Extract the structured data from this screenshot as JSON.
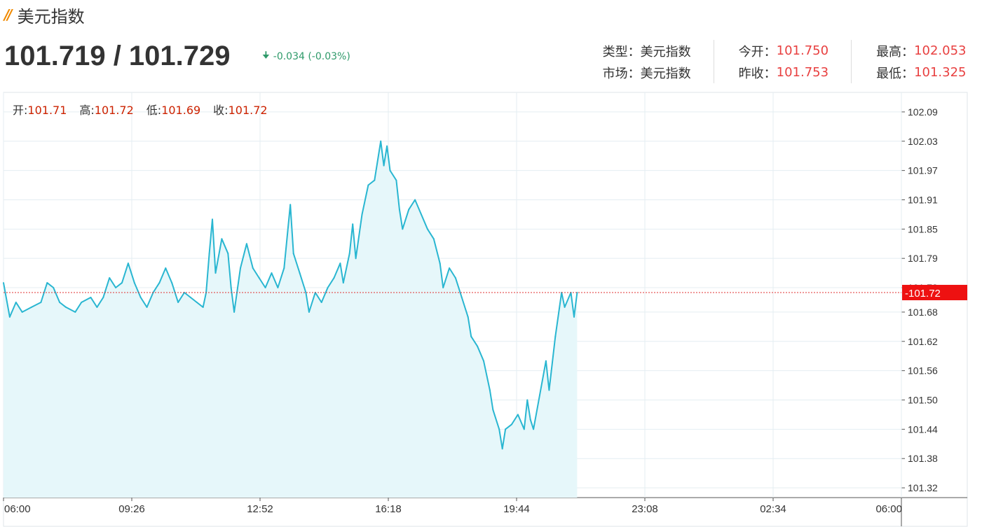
{
  "header": {
    "title": "美元指数",
    "price": "101.719 / 101.729",
    "change": "-0.034 (-0.03%)"
  },
  "info": {
    "type_label": "类型：",
    "type_value": "美元指数",
    "market_label": "市场：",
    "market_value": "美元指数",
    "open_label": "今开：",
    "open_value": "101.750",
    "prev_close_label": "昨收：",
    "prev_close_value": "101.753",
    "high_label": "最高：",
    "high_value": "102.053",
    "low_label": "最低：",
    "low_value": "101.325"
  },
  "ohlc": {
    "open_label": "开:",
    "open_value": "101.71",
    "high_label": "高:",
    "high_value": "101.72",
    "low_label": "低:",
    "low_value": "101.69",
    "close_label": "收:",
    "close_value": "101.72"
  },
  "colors": {
    "line": "#29b6d1",
    "area": "#e6f7fa",
    "current_line": "#e03030",
    "current_badge": "#ee1111",
    "grid": "#e4eef2"
  },
  "chart_data": {
    "type": "area",
    "xlabel": "",
    "ylabel": "",
    "x_ticks": [
      "06:00",
      "09:26",
      "12:52",
      "16:18",
      "19:44",
      "23:08",
      "02:34",
      "06:00"
    ],
    "y_ticks": [
      "102.09",
      "102.03",
      "101.97",
      "101.91",
      "101.85",
      "101.79",
      "101.73",
      "101.68",
      "101.62",
      "101.56",
      "101.50",
      "101.44",
      "101.38",
      "101.32"
    ],
    "ylim": [
      101.3,
      102.13
    ],
    "current_price": "101.72",
    "series": [
      {
        "points": [
          [
            "06:00",
            101.74
          ],
          [
            "06:10",
            101.67
          ],
          [
            "06:20",
            101.7
          ],
          [
            "06:30",
            101.68
          ],
          [
            "06:45",
            101.69
          ],
          [
            "07:00",
            101.7
          ],
          [
            "07:10",
            101.74
          ],
          [
            "07:20",
            101.73
          ],
          [
            "07:30",
            101.7
          ],
          [
            "07:40",
            101.69
          ],
          [
            "07:55",
            101.68
          ],
          [
            "08:05",
            101.7
          ],
          [
            "08:20",
            101.71
          ],
          [
            "08:30",
            101.69
          ],
          [
            "08:40",
            101.71
          ],
          [
            "08:50",
            101.75
          ],
          [
            "09:00",
            101.73
          ],
          [
            "09:10",
            101.74
          ],
          [
            "09:20",
            101.78
          ],
          [
            "09:30",
            101.74
          ],
          [
            "09:40",
            101.71
          ],
          [
            "09:50",
            101.69
          ],
          [
            "10:00",
            101.72
          ],
          [
            "10:10",
            101.74
          ],
          [
            "10:20",
            101.77
          ],
          [
            "10:30",
            101.74
          ],
          [
            "10:40",
            101.7
          ],
          [
            "10:50",
            101.72
          ],
          [
            "11:00",
            101.71
          ],
          [
            "11:10",
            101.7
          ],
          [
            "11:20",
            101.69
          ],
          [
            "11:25",
            101.72
          ],
          [
            "11:30",
            101.8
          ],
          [
            "11:35",
            101.87
          ],
          [
            "11:40",
            101.76
          ],
          [
            "11:50",
            101.83
          ],
          [
            "12:00",
            101.8
          ],
          [
            "12:05",
            101.73
          ],
          [
            "12:10",
            101.68
          ],
          [
            "12:20",
            101.77
          ],
          [
            "12:30",
            101.82
          ],
          [
            "12:40",
            101.77
          ],
          [
            "12:50",
            101.75
          ],
          [
            "13:00",
            101.73
          ],
          [
            "13:10",
            101.76
          ],
          [
            "13:20",
            101.73
          ],
          [
            "13:30",
            101.77
          ],
          [
            "13:40",
            101.9
          ],
          [
            "13:45",
            101.8
          ],
          [
            "13:55",
            101.76
          ],
          [
            "14:05",
            101.72
          ],
          [
            "14:10",
            101.68
          ],
          [
            "14:20",
            101.72
          ],
          [
            "14:30",
            101.7
          ],
          [
            "14:40",
            101.73
          ],
          [
            "14:50",
            101.75
          ],
          [
            "15:00",
            101.78
          ],
          [
            "15:05",
            101.74
          ],
          [
            "15:15",
            101.8
          ],
          [
            "15:20",
            101.86
          ],
          [
            "15:25",
            101.79
          ],
          [
            "15:35",
            101.88
          ],
          [
            "15:45",
            101.94
          ],
          [
            "15:55",
            101.95
          ],
          [
            "16:05",
            102.03
          ],
          [
            "16:10",
            101.98
          ],
          [
            "16:15",
            102.02
          ],
          [
            "16:20",
            101.97
          ],
          [
            "16:30",
            101.95
          ],
          [
            "16:35",
            101.89
          ],
          [
            "16:40",
            101.85
          ],
          [
            "16:50",
            101.89
          ],
          [
            "17:00",
            101.91
          ],
          [
            "17:10",
            101.88
          ],
          [
            "17:20",
            101.85
          ],
          [
            "17:30",
            101.83
          ],
          [
            "17:40",
            101.78
          ],
          [
            "17:45",
            101.73
          ],
          [
            "17:55",
            101.77
          ],
          [
            "18:05",
            101.75
          ],
          [
            "18:15",
            101.71
          ],
          [
            "18:25",
            101.67
          ],
          [
            "18:30",
            101.63
          ],
          [
            "18:40",
            101.61
          ],
          [
            "18:50",
            101.58
          ],
          [
            "19:00",
            101.52
          ],
          [
            "19:05",
            101.48
          ],
          [
            "19:15",
            101.44
          ],
          [
            "19:20",
            101.4
          ],
          [
            "19:25",
            101.44
          ],
          [
            "19:35",
            101.45
          ],
          [
            "19:45",
            101.47
          ],
          [
            "19:55",
            101.44
          ],
          [
            "20:00",
            101.5
          ],
          [
            "20:05",
            101.46
          ],
          [
            "20:10",
            101.44
          ],
          [
            "20:20",
            101.51
          ],
          [
            "20:30",
            101.58
          ],
          [
            "20:35",
            101.52
          ],
          [
            "20:45",
            101.63
          ],
          [
            "20:55",
            101.72
          ],
          [
            "21:00",
            101.69
          ],
          [
            "21:10",
            101.72
          ],
          [
            "21:15",
            101.67
          ],
          [
            "21:20",
            101.72
          ]
        ]
      }
    ]
  }
}
